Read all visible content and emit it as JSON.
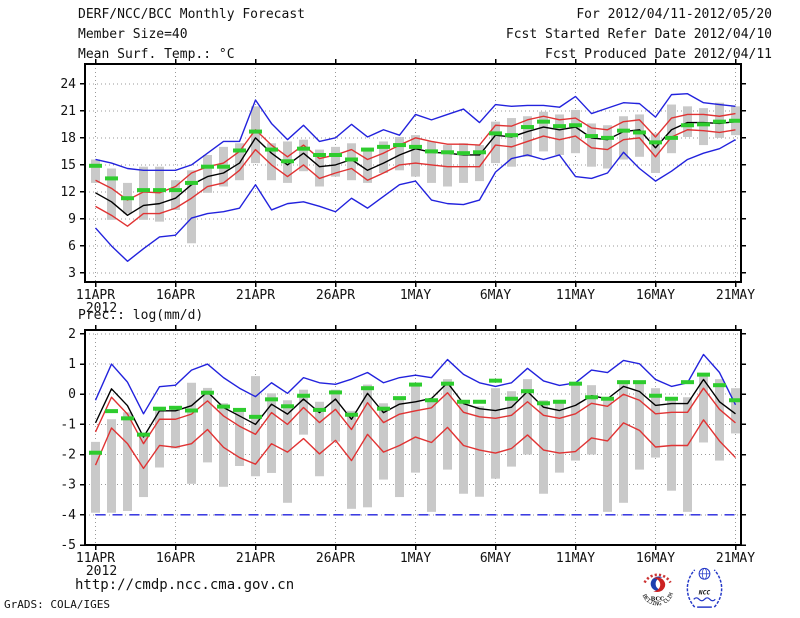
{
  "header": {
    "title": "DERF/NCC/BCC Monthly Forecast",
    "member_size": "Member Size=40",
    "for_range": "For 2012/04/11-2012/05/20",
    "refer_date": "Fcst Started Refer Date 2012/04/10",
    "produced_date": "Fcst Produced Date 2012/04/11"
  },
  "footer": {
    "url": "http://cmdp.ncc.cma.gov.cn",
    "credit": "GrADS: COLA/IGES",
    "logos": {
      "bcc_text": "BCC",
      "bcc_subtext": "BEIJING CLIMATE CENTER",
      "ncc_text": "NCC"
    }
  },
  "colors": {
    "blue": "#2222dd",
    "red": "#e03333",
    "black": "#000000",
    "green": "#2ecc2e",
    "gray": "#c9c9c9",
    "grid": "#999999",
    "frame": "#000000"
  },
  "chart_data": [
    {
      "type": "line",
      "title": "Mean Surf. Temp.: °C",
      "ylabel": "°C",
      "ylim": [
        2.0,
        26.2
      ],
      "yticks": [
        3,
        6,
        9,
        12,
        15,
        18,
        21,
        24
      ],
      "grid": "dotted",
      "xticks": [
        {
          "day": 0,
          "label": "11APR",
          "sub": "2012"
        },
        {
          "day": 5,
          "label": "16APR"
        },
        {
          "day": 10,
          "label": "21APR"
        },
        {
          "day": 15,
          "label": "26APR"
        },
        {
          "day": 20,
          "label": "1MAY"
        },
        {
          "day": 25,
          "label": "6MAY"
        },
        {
          "day": 30,
          "label": "11MAY"
        },
        {
          "day": 35,
          "label": "16MAY"
        },
        {
          "day": 40,
          "label": "21MAY"
        }
      ],
      "x": [
        "11APR",
        "12APR",
        "13APR",
        "14APR",
        "15APR",
        "16APR",
        "17APR",
        "18APR",
        "19APR",
        "20APR",
        "21APR",
        "22APR",
        "23APR",
        "24APR",
        "25APR",
        "26APR",
        "27APR",
        "28APR",
        "29APR",
        "30APR",
        "1MAY",
        "2MAY",
        "3MAY",
        "4MAY",
        "5MAY",
        "6MAY",
        "7MAY",
        "8MAY",
        "9MAY",
        "10MAY",
        "11MAY",
        "12MAY",
        "13MAY",
        "14MAY",
        "15MAY",
        "16MAY",
        "17MAY",
        "18MAY",
        "19MAY",
        "20MAY",
        "21MAY"
      ],
      "series": [
        {
          "name": "maximum",
          "style": "line",
          "color": "#2222dd",
          "values": [
            15.6,
            15.2,
            14.6,
            14.4,
            14.4,
            14.4,
            15.0,
            16.3,
            17.6,
            17.6,
            22.2,
            19.6,
            17.8,
            19.4,
            17.6,
            18.0,
            19.5,
            18.1,
            18.9,
            18.3,
            20.6,
            20.0,
            20.6,
            21.2,
            19.7,
            21.7,
            21.5,
            21.6,
            21.6,
            21.4,
            22.6,
            20.7,
            21.3,
            21.9,
            21.8,
            20.3,
            22.8,
            22.9,
            21.9,
            21.7,
            21.5
          ]
        },
        {
          "name": "upper-quartile",
          "style": "line",
          "color": "#e03333",
          "values": [
            13.3,
            12.4,
            11.1,
            12.0,
            11.9,
            12.6,
            14.1,
            14.8,
            15.2,
            16.5,
            18.9,
            17.2,
            15.9,
            17.2,
            15.7,
            16.1,
            16.7,
            15.6,
            16.3,
            17.2,
            18.0,
            17.6,
            17.3,
            17.3,
            17.2,
            19.4,
            19.3,
            20.0,
            20.4,
            20.0,
            20.2,
            19.1,
            18.9,
            19.8,
            20.0,
            18.1,
            20.2,
            20.6,
            20.6,
            20.4,
            20.7
          ]
        },
        {
          "name": "lower-quartile",
          "style": "line",
          "color": "#e03333",
          "values": [
            10.4,
            9.4,
            8.2,
            9.6,
            9.6,
            10.2,
            11.3,
            12.6,
            13.0,
            14.4,
            16.7,
            15.0,
            13.7,
            15.0,
            13.5,
            14.1,
            14.6,
            13.3,
            14.1,
            15.0,
            15.2,
            15.0,
            14.8,
            14.8,
            14.8,
            17.2,
            17.0,
            17.6,
            18.2,
            17.8,
            18.2,
            16.9,
            16.7,
            17.8,
            18.0,
            15.9,
            18.1,
            18.9,
            18.8,
            18.6,
            18.9
          ]
        },
        {
          "name": "minimum",
          "style": "line",
          "color": "#2222dd",
          "values": [
            8.0,
            6.0,
            4.3,
            5.7,
            7.0,
            7.2,
            9.1,
            9.6,
            9.8,
            10.2,
            12.8,
            10.0,
            10.7,
            10.9,
            10.4,
            9.8,
            11.3,
            10.2,
            11.5,
            12.8,
            13.2,
            11.1,
            10.7,
            10.6,
            11.1,
            14.2,
            15.7,
            16.1,
            15.6,
            16.1,
            13.7,
            13.5,
            14.1,
            16.4,
            14.6,
            13.2,
            14.3,
            15.6,
            16.3,
            16.8,
            17.8
          ]
        },
        {
          "name": "median",
          "style": "line",
          "color": "#000000",
          "values": [
            11.9,
            10.9,
            9.4,
            10.5,
            10.7,
            11.3,
            12.8,
            13.7,
            14.1,
            15.2,
            18.0,
            16.3,
            15.0,
            16.3,
            14.8,
            15.0,
            15.6,
            14.4,
            15.2,
            16.1,
            16.8,
            16.4,
            16.3,
            16.1,
            16.1,
            18.3,
            18.1,
            18.7,
            19.2,
            18.9,
            19.2,
            18.0,
            17.8,
            18.7,
            18.9,
            16.9,
            18.9,
            19.7,
            19.7,
            19.6,
            19.8
          ]
        },
        {
          "name": "ensemble-mean-marker",
          "style": "dash-marker",
          "color": "#2ecc2e",
          "values": [
            14.9,
            13.5,
            11.3,
            12.2,
            12.2,
            12.2,
            13.0,
            14.8,
            14.8,
            16.6,
            18.7,
            16.7,
            15.4,
            16.8,
            16.1,
            16.1,
            15.6,
            16.7,
            17.0,
            17.2,
            17.0,
            16.5,
            16.4,
            16.3,
            16.4,
            18.5,
            18.3,
            19.2,
            19.8,
            19.3,
            19.4,
            18.2,
            18.0,
            18.8,
            18.6,
            17.5,
            18.0,
            19.4,
            19.5,
            19.8,
            19.9
          ]
        },
        {
          "name": "spread-bar",
          "style": "bar",
          "color": "#c9c9c9",
          "high": [
            15.6,
            14.6,
            13.0,
            14.8,
            14.8,
            13.3,
            14.4,
            16.1,
            17.0,
            17.4,
            21.5,
            17.4,
            17.6,
            17.8,
            16.7,
            17.0,
            17.4,
            16.5,
            17.6,
            18.1,
            18.3,
            17.6,
            17.2,
            17.4,
            17.2,
            19.8,
            20.2,
            20.4,
            20.9,
            20.6,
            21.1,
            19.6,
            19.4,
            20.4,
            20.6,
            18.5,
            21.7,
            21.5,
            21.3,
            21.9,
            21.5
          ],
          "low": [
            13.0,
            8.9,
            9.6,
            8.9,
            8.7,
            10.0,
            6.3,
            11.9,
            12.6,
            13.3,
            15.2,
            13.3,
            13.0,
            14.3,
            12.6,
            13.7,
            13.3,
            13.0,
            14.1,
            14.4,
            13.7,
            13.0,
            12.6,
            13.0,
            13.2,
            15.2,
            14.8,
            15.9,
            16.5,
            16.1,
            16.3,
            14.8,
            14.6,
            15.6,
            15.9,
            14.1,
            16.3,
            18.1,
            17.2,
            18.0,
            18.3
          ]
        }
      ]
    },
    {
      "type": "line",
      "title": "Prec.: log(mm/d)",
      "ylabel": "log(mm/d)",
      "ylim": [
        -5.0,
        2.13
      ],
      "yticks": [
        2,
        1,
        0,
        -1,
        -2,
        -3,
        -4,
        -5
      ],
      "grid": "dotted",
      "xticks": [
        {
          "day": 0,
          "label": "11APR",
          "sub": "2012"
        },
        {
          "day": 5,
          "label": "16APR"
        },
        {
          "day": 10,
          "label": "21APR"
        },
        {
          "day": 15,
          "label": "26APR"
        },
        {
          "day": 20,
          "label": "1MAY"
        },
        {
          "day": 25,
          "label": "6MAY"
        },
        {
          "day": 30,
          "label": "11MAY"
        },
        {
          "day": 35,
          "label": "16MAY"
        },
        {
          "day": 40,
          "label": "21MAY"
        }
      ],
      "x": [
        "11APR",
        "12APR",
        "13APR",
        "14APR",
        "15APR",
        "16APR",
        "17APR",
        "18APR",
        "19APR",
        "20APR",
        "21APR",
        "22APR",
        "23APR",
        "24APR",
        "25APR",
        "26APR",
        "27APR",
        "28APR",
        "29APR",
        "30APR",
        "1MAY",
        "2MAY",
        "3MAY",
        "4MAY",
        "5MAY",
        "6MAY",
        "7MAY",
        "8MAY",
        "9MAY",
        "10MAY",
        "11MAY",
        "12MAY",
        "13MAY",
        "14MAY",
        "15MAY",
        "16MAY",
        "17MAY",
        "18MAY",
        "19MAY",
        "20MAY",
        "21MAY"
      ],
      "series": [
        {
          "name": "maximum",
          "style": "line",
          "color": "#2222dd",
          "values": [
            -0.2,
            1.0,
            0.4,
            -0.65,
            0.25,
            0.3,
            0.8,
            1.0,
            0.55,
            0.2,
            -0.08,
            0.38,
            0.03,
            0.55,
            0.38,
            0.33,
            0.5,
            0.72,
            0.38,
            0.55,
            0.63,
            0.55,
            1.15,
            0.66,
            0.38,
            0.26,
            0.38,
            0.86,
            0.44,
            0.29,
            0.38,
            0.8,
            0.72,
            1.12,
            1.01,
            0.49,
            0.26,
            0.38,
            1.32,
            0.72,
            -0.35
          ]
        },
        {
          "name": "upper-quartile",
          "style": "line",
          "color": "#e03333",
          "values": [
            -1.25,
            -0.1,
            -0.66,
            -1.64,
            -0.83,
            -0.83,
            -0.66,
            -0.22,
            -0.72,
            -1.06,
            -1.33,
            -0.61,
            -1.0,
            -0.44,
            -0.94,
            -0.5,
            -1.17,
            -0.28,
            -0.94,
            -0.66,
            -0.55,
            -0.45,
            0.05,
            -0.6,
            -0.75,
            -0.8,
            -0.7,
            -0.25,
            -0.7,
            -0.8,
            -0.65,
            -0.3,
            -0.4,
            0.0,
            -0.2,
            -0.65,
            -0.6,
            -0.6,
            0.2,
            -0.5,
            -0.95
          ]
        },
        {
          "name": "lower-quartile",
          "style": "line",
          "color": "#e03333",
          "values": [
            -2.35,
            -1.12,
            -1.64,
            -2.46,
            -1.7,
            -1.76,
            -1.64,
            -1.17,
            -1.76,
            -2.1,
            -2.32,
            -1.64,
            -1.92,
            -1.47,
            -1.98,
            -1.53,
            -2.2,
            -1.33,
            -1.92,
            -1.7,
            -1.42,
            -1.6,
            -1.1,
            -1.7,
            -1.85,
            -1.95,
            -1.8,
            -1.35,
            -1.85,
            -1.95,
            -1.9,
            -1.45,
            -1.55,
            -0.95,
            -1.2,
            -1.75,
            -1.7,
            -1.7,
            -0.85,
            -1.55,
            -2.1
          ]
        },
        {
          "name": "minimum",
          "style": "dashed-line",
          "color": "#2222dd",
          "values": [
            -4,
            -4,
            -4,
            -4,
            -4,
            -4,
            -4,
            -4,
            -4,
            -4,
            -4,
            -4,
            -4,
            -4,
            -4,
            -4,
            -4,
            -4,
            -4,
            -4,
            -4,
            -4,
            -4,
            -4,
            -4,
            -4,
            -4,
            -4,
            -4,
            -4,
            -4,
            -4,
            -4,
            -4,
            -4,
            -4,
            -4,
            -4,
            -4,
            -4,
            -4
          ]
        },
        {
          "name": "median",
          "style": "line",
          "color": "#000000",
          "values": [
            -0.95,
            0.18,
            -0.38,
            -1.42,
            -0.55,
            -0.55,
            -0.38,
            0.08,
            -0.44,
            -0.72,
            -1.0,
            -0.33,
            -0.66,
            -0.16,
            -0.61,
            -0.16,
            -0.83,
            0.03,
            -0.61,
            -0.33,
            -0.25,
            -0.14,
            0.38,
            -0.31,
            -0.48,
            -0.54,
            -0.43,
            0.09,
            -0.43,
            -0.54,
            -0.37,
            -0.05,
            -0.15,
            0.26,
            0.09,
            -0.37,
            -0.31,
            -0.31,
            0.49,
            -0.25,
            -0.65
          ]
        },
        {
          "name": "ensemble-mean-marker",
          "style": "dash-marker",
          "color": "#2ecc2e",
          "values": [
            -1.94,
            -0.56,
            -0.8,
            -1.34,
            -0.48,
            -0.45,
            -0.54,
            0.05,
            -0.41,
            -0.52,
            -0.75,
            -0.17,
            -0.4,
            -0.05,
            -0.52,
            0.06,
            -0.68,
            0.2,
            -0.48,
            -0.13,
            0.32,
            -0.2,
            0.35,
            -0.25,
            -0.25,
            0.45,
            -0.15,
            0.1,
            -0.3,
            -0.25,
            0.35,
            -0.1,
            -0.15,
            0.4,
            0.4,
            -0.05,
            -0.15,
            0.4,
            0.65,
            0.3,
            -0.2
          ]
        },
        {
          "name": "spread-bar",
          "style": "bar",
          "color": "#c9c9c9",
          "high": [
            -1.58,
            -0.83,
            -0.6,
            -1.34,
            -0.54,
            -0.48,
            0.38,
            0.21,
            -0.3,
            -0.48,
            0.6,
            0.03,
            -0.2,
            0.15,
            -0.25,
            0.15,
            -0.55,
            0.32,
            -0.3,
            -0.08,
            0.3,
            -0.2,
            0.5,
            -0.3,
            -0.4,
            0.2,
            0.1,
            0.5,
            -0.2,
            -0.3,
            0.4,
            0.3,
            -0.1,
            0.4,
            0.4,
            0.2,
            -0.2,
            -0.1,
            0.6,
            0.5,
            0.2
          ],
          "low": [
            -3.93,
            -3.93,
            -3.87,
            -3.41,
            -2.43,
            -1.8,
            -2.97,
            -2.26,
            -3.07,
            -2.38,
            -2.72,
            -2.61,
            -3.6,
            -1.34,
            -2.72,
            -1.57,
            -3.8,
            -3.75,
            -2.83,
            -3.41,
            -2.6,
            -3.9,
            -2.5,
            -3.3,
            -3.4,
            -2.8,
            -2.4,
            -2.0,
            -3.3,
            -2.6,
            -2.2,
            -2.0,
            -3.9,
            -3.6,
            -2.5,
            -2.1,
            -3.2,
            -3.9,
            -1.6,
            -2.2,
            -1.3
          ]
        }
      ]
    }
  ]
}
